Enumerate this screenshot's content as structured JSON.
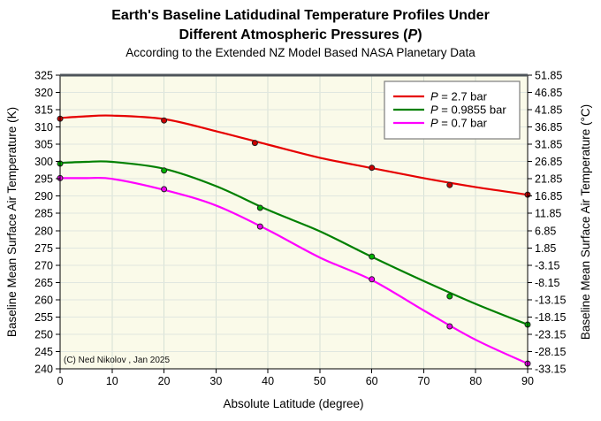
{
  "chart_data": {
    "type": "line",
    "title_line1": "Earth's Baseline Latidudinal Temperature Profiles Under",
    "title_line2": {
      "pre": "Different Atmospheric Pressures (",
      "var": "P",
      "post": ")"
    },
    "subtitle": "According to the Extended NZ Model Based NASA Planetary Data",
    "xlabel": "Absolute Latitude (degree)",
    "ylabel_left": "Baseline Mean Surface Air Temperature (K)",
    "ylabel_right": "Baseline Mean Surface Air Temperature (°C)",
    "copyright": "(C) Ned Nikolov , Jan 2025",
    "xlim": [
      0,
      90
    ],
    "ylim_K": [
      240,
      325
    ],
    "x_ticks": [
      0,
      10,
      20,
      30,
      40,
      50,
      60,
      70,
      80,
      90
    ],
    "y_ticks_K": [
      325,
      320,
      315,
      310,
      305,
      300,
      295,
      290,
      285,
      280,
      275,
      270,
      265,
      260,
      255,
      250,
      245,
      240
    ],
    "y_ticks_C": [
      "51.85",
      "46.85",
      "41.85",
      "36.85",
      "31.85",
      "26.85",
      "21.85",
      "16.85",
      "11.85",
      "6.85",
      "1.85",
      "-3.15",
      "-8.15",
      "-13.15",
      "-18.15",
      "-23.15",
      "-28.15",
      "-33.15"
    ],
    "grid": true,
    "legend_position": "top-right",
    "colors": {
      "plot_bg": "#fafae9",
      "grid_vertical": "#d5e0d5",
      "grid_horizontal": "#e0e7e0",
      "top_band": "#4e545a",
      "marker_stroke": "#222222"
    },
    "series": [
      {
        "label": "P = 2.7 bar",
        "label_var": "P",
        "label_rest": " = 2.7 bar",
        "color": "#e60000",
        "marker_fill": "#cc0000",
        "points_x": [
          0,
          20,
          37.5,
          60,
          75,
          90
        ],
        "points_y_K": [
          312.4,
          311.9,
          305.4,
          298.2,
          293.2,
          290.4
        ],
        "fit_x": [
          0,
          5,
          10,
          20,
          30,
          40,
          50,
          60,
          70,
          80,
          90
        ],
        "fit_y_K": [
          312.6,
          313.1,
          313.3,
          312.3,
          308.8,
          304.9,
          301.1,
          298.1,
          295.2,
          292.6,
          290.4
        ]
      },
      {
        "label": "P = 0.9855 bar",
        "label_var": "P",
        "label_rest": " = 0.9855 bar",
        "color": "#008000",
        "marker_fill": "#00b400",
        "points_x": [
          0,
          20,
          38.5,
          60,
          75,
          90
        ],
        "points_y_K": [
          299.4,
          297.4,
          286.6,
          272.5,
          261.0,
          252.8
        ],
        "fit_x": [
          0,
          5,
          10,
          20,
          30,
          40,
          50,
          60,
          70,
          80,
          90
        ],
        "fit_y_K": [
          299.6,
          299.9,
          299.9,
          297.9,
          292.9,
          286.0,
          279.8,
          272.4,
          265.4,
          258.8,
          252.8
        ]
      },
      {
        "label": "P = 0.7 bar",
        "label_var": "P",
        "label_rest": " = 0.7 bar",
        "color": "#ff00ff",
        "marker_fill": "#ee00ee",
        "points_x": [
          0,
          20,
          38.5,
          60,
          75,
          90
        ],
        "points_y_K": [
          295.2,
          292.0,
          281.2,
          265.9,
          252.3,
          241.5
        ],
        "fit_x": [
          0,
          5,
          10,
          20,
          30,
          40,
          50,
          60,
          70,
          80,
          90
        ],
        "fit_y_K": [
          295.2,
          295.2,
          295.0,
          291.8,
          287.3,
          280.2,
          272.2,
          265.7,
          256.9,
          248.4,
          241.5
        ]
      }
    ]
  }
}
